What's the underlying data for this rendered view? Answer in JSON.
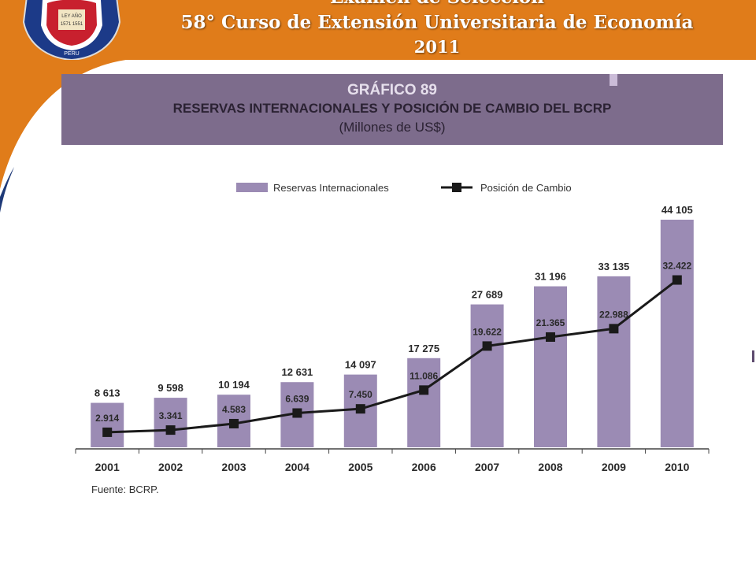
{
  "header": {
    "title_line1": "Examen de Selección",
    "title_line2": "58° Curso de Extensión Universitaria de Economía",
    "title_line3": "2011",
    "logo_text": [
      "LEY AÑO",
      "1571 1551",
      "PERU"
    ]
  },
  "colors": {
    "header_orange": "#e07c1a",
    "chart_header_purple": "#7d6c8c",
    "bar_purple": "#9b8bb4",
    "line_color": "#1a1a1a"
  },
  "chart_data": {
    "type": "bar",
    "number_label": "GRÁFICO 89",
    "title": "RESERVAS INTERNACIONALES Y POSICIÓN DE CAMBIO DEL BCRP",
    "subtitle": "(Millones de US$)",
    "source": "Fuente: BCRP.",
    "categories": [
      "2001",
      "2002",
      "2003",
      "2004",
      "2005",
      "2006",
      "2007",
      "2008",
      "2009",
      "2010"
    ],
    "ylim": [
      0,
      47000
    ],
    "grid": false,
    "legend_position": "top",
    "series": [
      {
        "name": "Reservas Internacionales",
        "kind": "bar",
        "values": [
          8613,
          9598,
          10194,
          12631,
          14097,
          17275,
          27689,
          31196,
          33135,
          44105
        ],
        "labels": [
          "8 613",
          "9 598",
          "10 194",
          "12 631",
          "14 097",
          "17 275",
          "27 689",
          "31 196",
          "33 135",
          "44 105"
        ]
      },
      {
        "name": "Posición de Cambio",
        "kind": "line",
        "values": [
          2914,
          3341,
          4583,
          6639,
          7450,
          11086,
          19622,
          21365,
          22988,
          32422
        ],
        "labels": [
          "2.914",
          "3.341",
          "4.583",
          "6.639",
          "7.450",
          "11.086",
          "19.622",
          "21.365",
          "22.988",
          "32.422"
        ]
      }
    ]
  }
}
